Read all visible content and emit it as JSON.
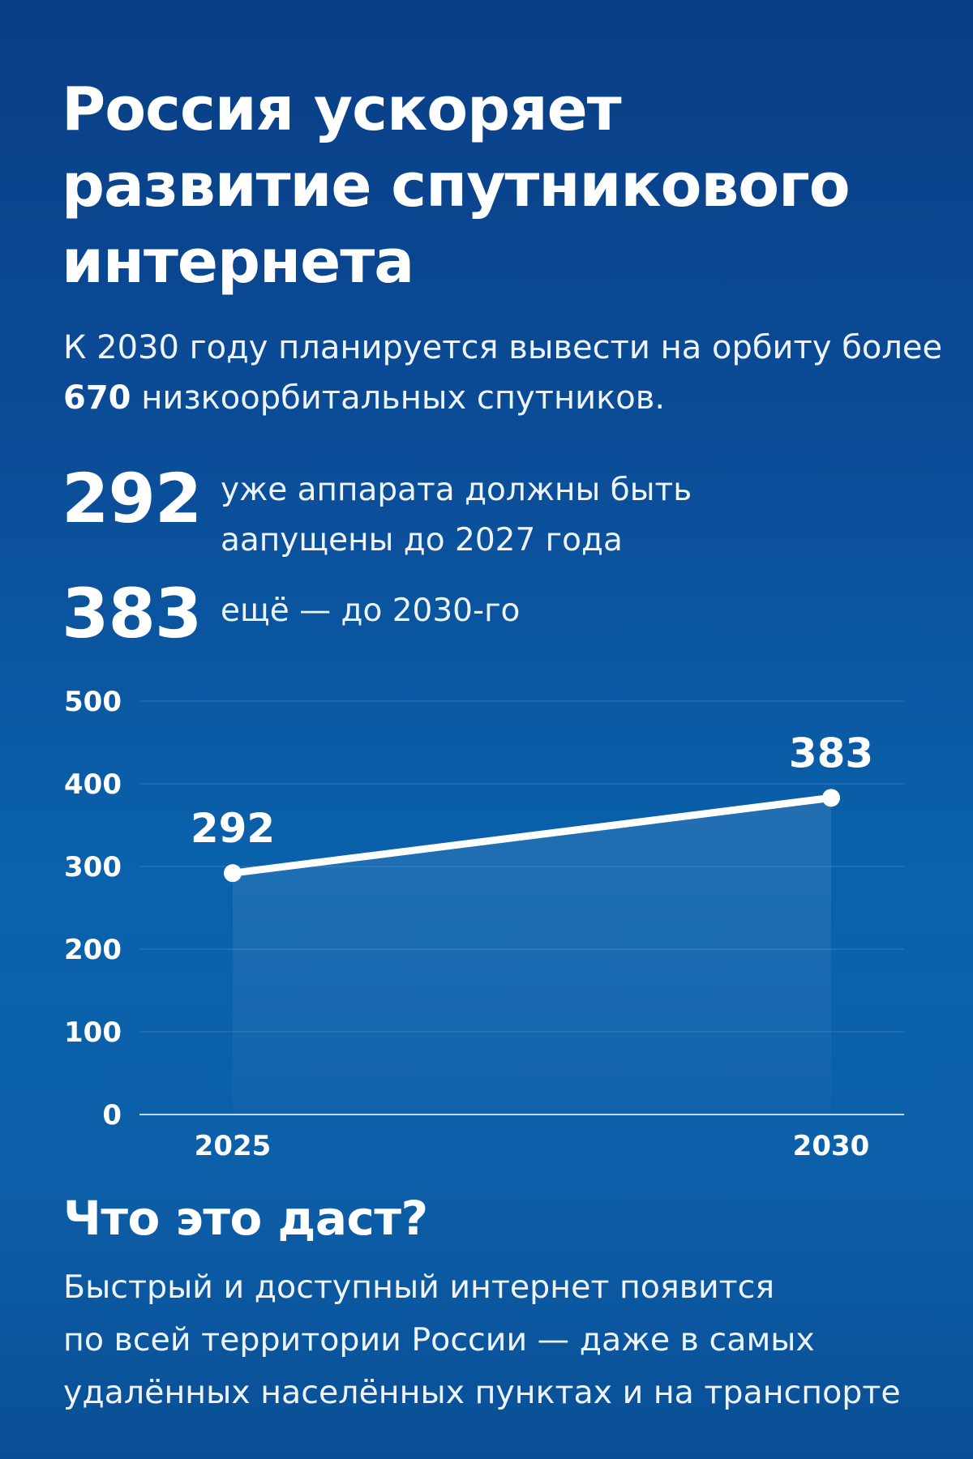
{
  "title": "Россия ускоряет развитие спутникового интернета",
  "lede": {
    "before": "К 2030 году планируется вывести на орбиту более ",
    "highlight": "670",
    "after": " низкоорбитальных спутников."
  },
  "stats": [
    {
      "number": "292",
      "text": "уже аппарата должны быть аапущены до 2027 года"
    },
    {
      "number": "383",
      "text": "ещё — до 2030-го"
    }
  ],
  "chart_data": {
    "type": "line",
    "title": "",
    "xlabel": "",
    "ylabel": "",
    "x": [
      "2025",
      "2030"
    ],
    "values": [
      292,
      383
    ],
    "data_labels": [
      "292",
      "383"
    ],
    "yticks": [
      "0",
      "100",
      "200",
      "300",
      "400",
      "500"
    ],
    "ylim": [
      0,
      500
    ],
    "grid": true,
    "legend": "none",
    "line_color": "#ffffff",
    "marker_color": "#ffffff"
  },
  "section": {
    "heading": "Что это даст?",
    "lines": [
      "Быстрый и доступный интернет появится",
      "по всей территории России — даже в самых",
      "удалённых населённых пунктах и на транспорте"
    ]
  },
  "colors": {
    "background_top": "#0a3e86",
    "background_mid": "#0a62ac",
    "text": "#ffffff"
  }
}
